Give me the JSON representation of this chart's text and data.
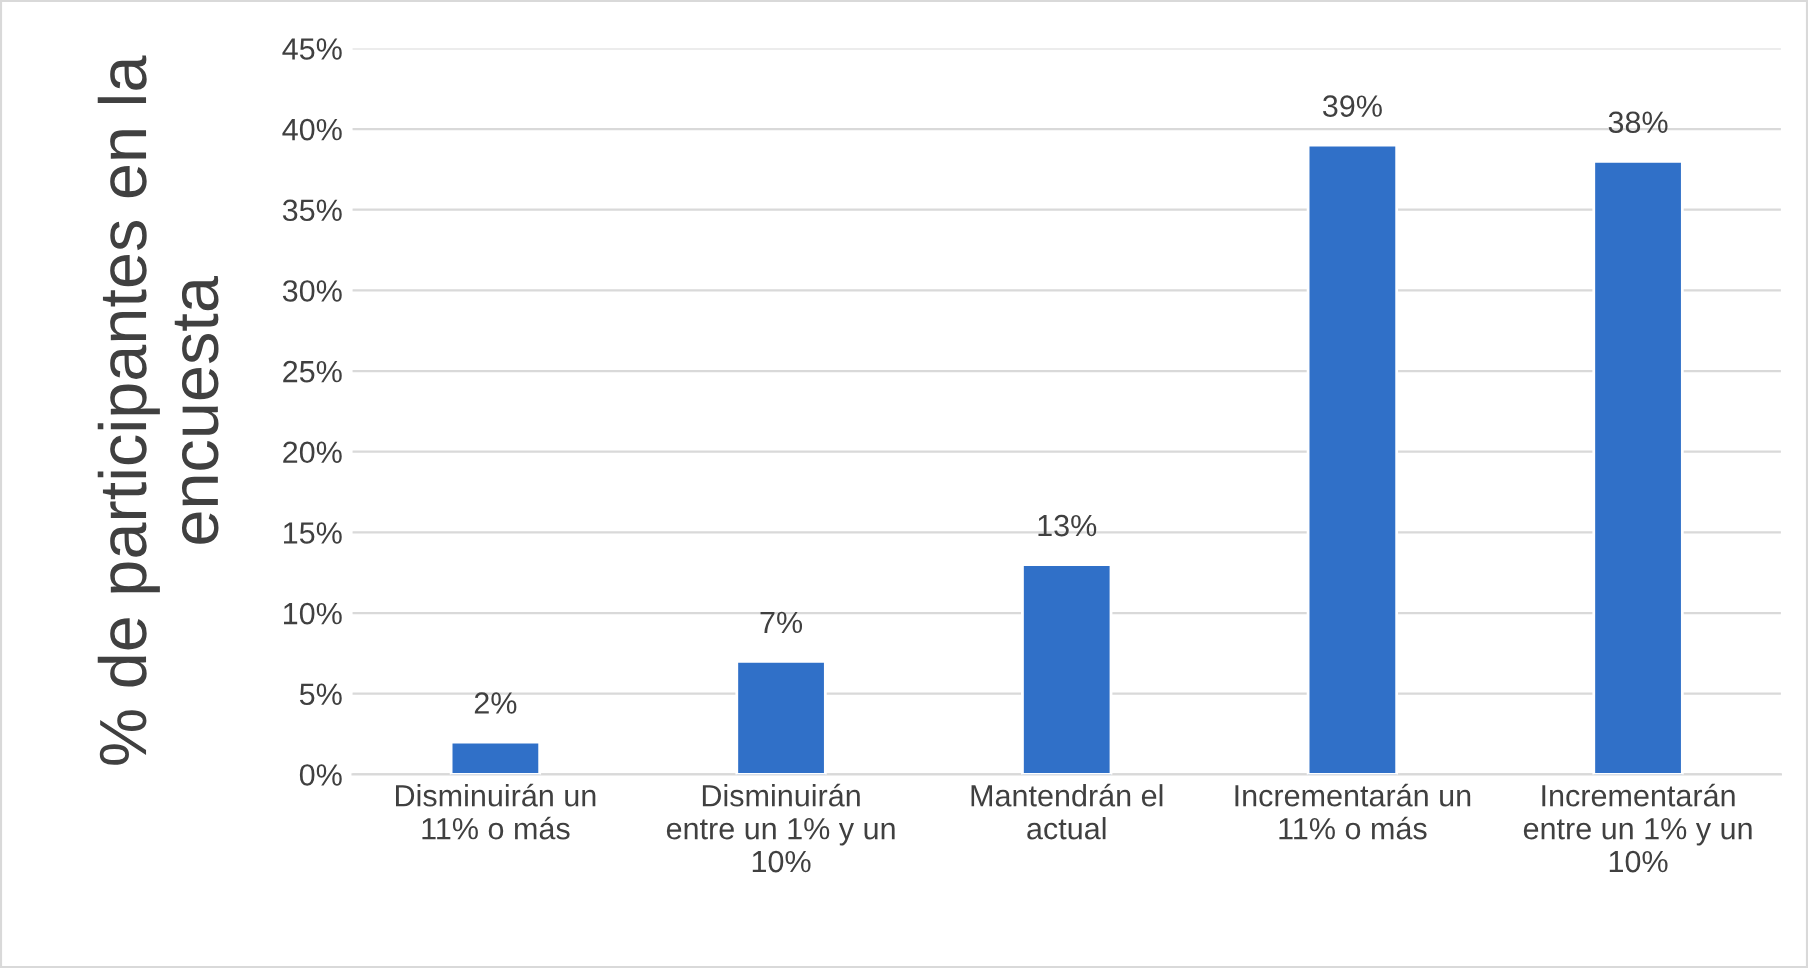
{
  "chart_data": {
    "type": "bar",
    "ylabel": "% de participantes en la encuesta",
    "categories": [
      "Disminuirán un 11% o más",
      "Disminuirán entre un 1% y un 10%",
      "Mantendrán el actual",
      "Incrementarán un 11% o más",
      "Incrementarán entre un 1% y un 10%"
    ],
    "values": [
      2,
      7,
      13,
      39,
      38
    ],
    "value_labels": [
      "2%",
      "7%",
      "13%",
      "39%",
      "38%"
    ],
    "color": "#3070c8",
    "ylim": [
      0,
      45
    ],
    "yticks": [
      {
        "value": 0,
        "label": "0%"
      },
      {
        "value": 5,
        "label": "5%"
      },
      {
        "value": 10,
        "label": "10%"
      },
      {
        "value": 15,
        "label": "15%"
      },
      {
        "value": 20,
        "label": "20%"
      },
      {
        "value": 25,
        "label": "25%"
      },
      {
        "value": 30,
        "label": "30%"
      },
      {
        "value": 35,
        "label": "35%"
      },
      {
        "value": 40,
        "label": "40%"
      },
      {
        "value": 45,
        "label": "45%"
      }
    ],
    "grid": "y",
    "legend": false
  }
}
